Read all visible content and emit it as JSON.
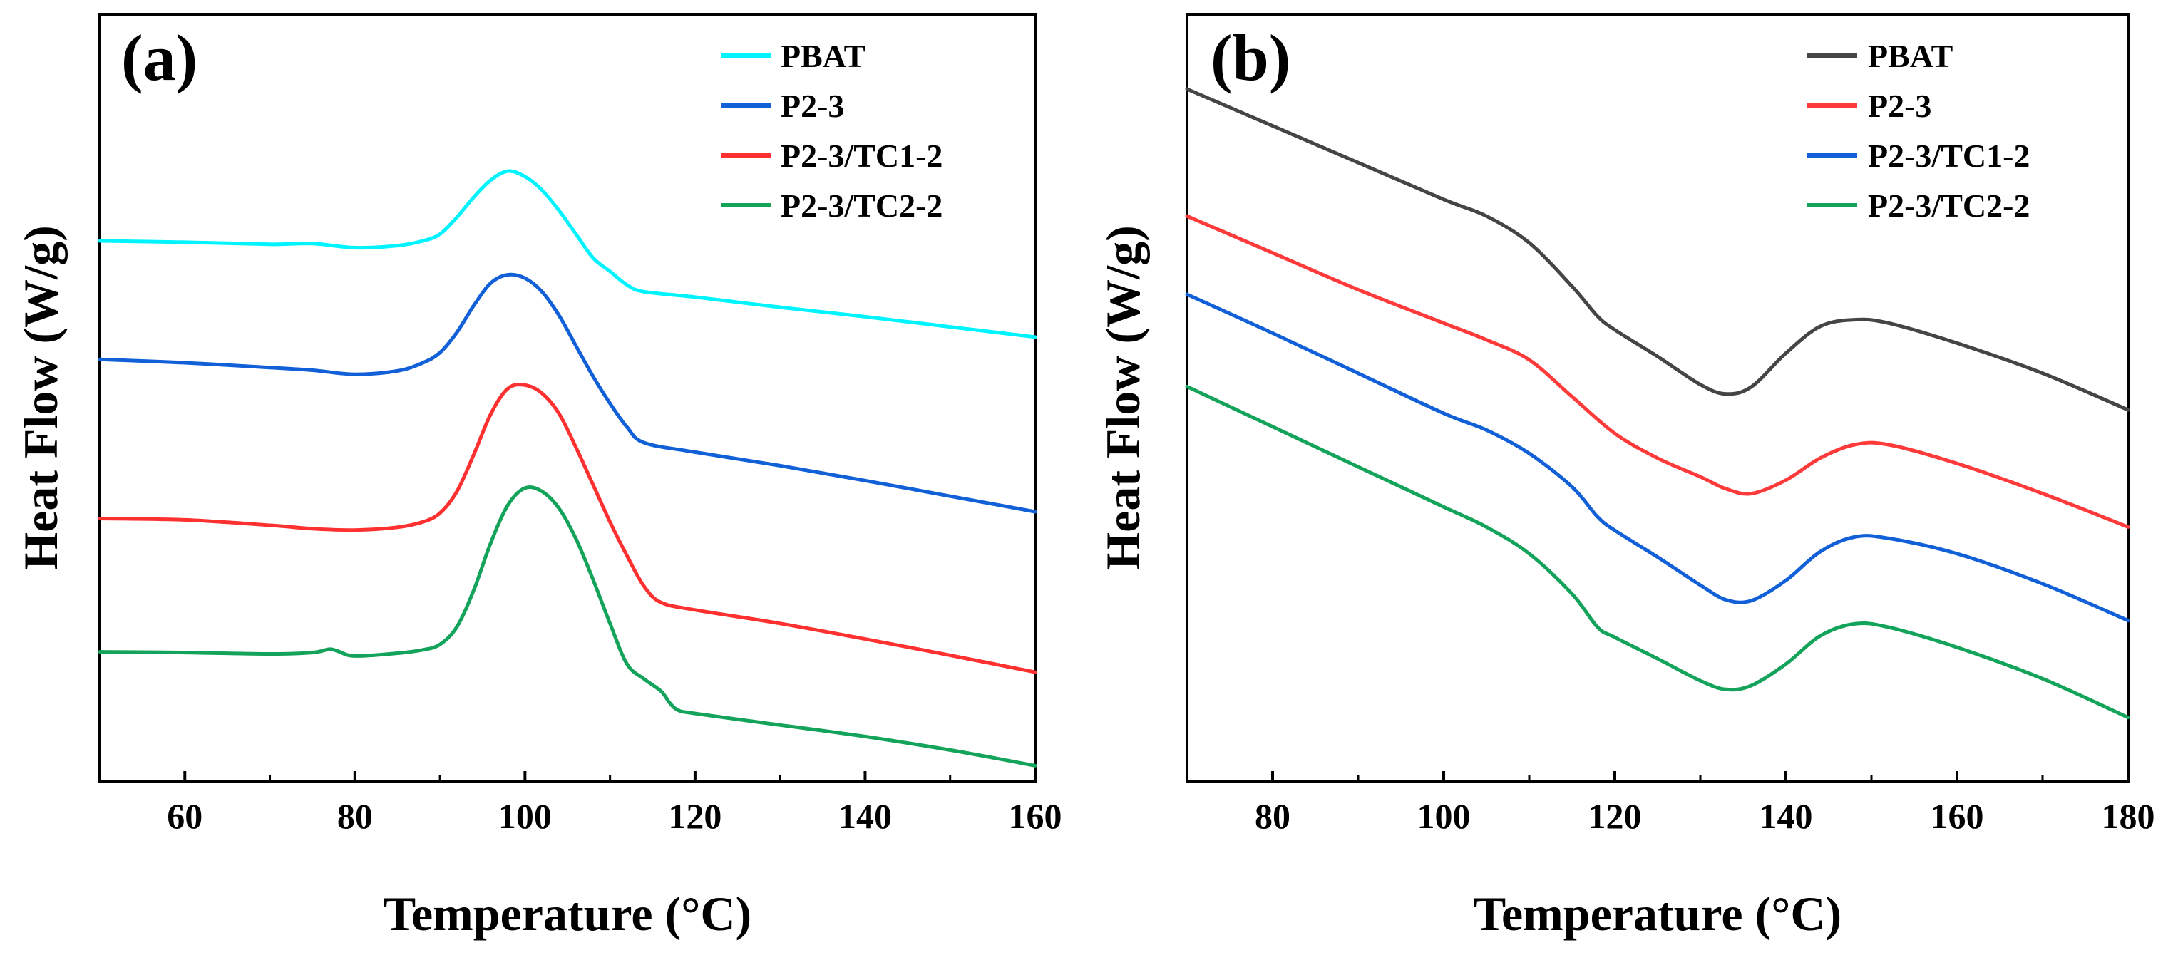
{
  "chart_data": [
    {
      "type": "line",
      "panel_label": "(a)",
      "xlabel": "Temperature (°C)",
      "ylabel": "Heat Flow (W/g)",
      "xlim": [
        50,
        160
      ],
      "ylim": [
        0,
        100
      ],
      "x_ticks": [
        60,
        80,
        100,
        120,
        140,
        160
      ],
      "y_ticks_shown": false,
      "grid": false,
      "legend_position": "top-right",
      "series": [
        {
          "name": "PBAT",
          "color": "#00f4ff",
          "points": [
            [
              50,
              76
            ],
            [
              60,
              75.8
            ],
            [
              70,
              75.5
            ],
            [
              75,
              75.6
            ],
            [
              80,
              75
            ],
            [
              85,
              75.3
            ],
            [
              88,
              76
            ],
            [
              90,
              77
            ],
            [
              92,
              79.5
            ],
            [
              94,
              82.5
            ],
            [
              96,
              85
            ],
            [
              98,
              86.3
            ],
            [
              100,
              85.5
            ],
            [
              102,
              83.5
            ],
            [
              104,
              80.5
            ],
            [
              106,
              77
            ],
            [
              108,
              73.5
            ],
            [
              110,
              71.5
            ],
            [
              112,
              69.5
            ],
            [
              114,
              68.5
            ],
            [
              120,
              67.7
            ],
            [
              130,
              66.2
            ],
            [
              140,
              64.8
            ],
            [
              150,
              63.3
            ],
            [
              160,
              61.8
            ]
          ]
        },
        {
          "name": "P2-3",
          "color": "#1160d8",
          "points": [
            [
              50,
              58.5
            ],
            [
              60,
              58
            ],
            [
              70,
              57.3
            ],
            [
              75,
              56.9
            ],
            [
              80,
              56.3
            ],
            [
              85,
              56.8
            ],
            [
              88,
              58
            ],
            [
              90,
              59.5
            ],
            [
              92,
              62.5
            ],
            [
              94,
              66.5
            ],
            [
              96,
              69.8
            ],
            [
              98,
              71
            ],
            [
              100,
              70.5
            ],
            [
              102,
              68.5
            ],
            [
              104,
              65
            ],
            [
              106,
              60.5
            ],
            [
              108,
              56
            ],
            [
              110,
              52
            ],
            [
              112,
              48.5
            ],
            [
              114,
              46.2
            ],
            [
              120,
              44.8
            ],
            [
              130,
              42.8
            ],
            [
              140,
              40.6
            ],
            [
              150,
              38.3
            ],
            [
              160,
              36
            ]
          ]
        },
        {
          "name": "P2-3/TC1-2",
          "color": "#ff3030",
          "points": [
            [
              50,
              35
            ],
            [
              60,
              34.8
            ],
            [
              70,
              34
            ],
            [
              75,
              33.5
            ],
            [
              80,
              33.3
            ],
            [
              85,
              33.7
            ],
            [
              88,
              34.5
            ],
            [
              90,
              35.8
            ],
            [
              92,
              39
            ],
            [
              94,
              44.5
            ],
            [
              96,
              50.5
            ],
            [
              98,
              54.2
            ],
            [
              100,
              54.7
            ],
            [
              102,
              53.5
            ],
            [
              104,
              50.5
            ],
            [
              106,
              45.5
            ],
            [
              108,
              40
            ],
            [
              110,
              34.5
            ],
            [
              112,
              29.5
            ],
            [
              114,
              25
            ],
            [
              116,
              22.6
            ],
            [
              120,
              21.5
            ],
            [
              130,
              19.5
            ],
            [
              140,
              17.2
            ],
            [
              150,
              14.8
            ],
            [
              160,
              12.3
            ]
          ]
        },
        {
          "name": "P2-3/TC2-2",
          "color": "#13a35a",
          "points": [
            [
              50,
              15.3
            ],
            [
              60,
              15.2
            ],
            [
              70,
              15
            ],
            [
              75,
              15.2
            ],
            [
              77,
              15.7
            ],
            [
              78,
              15.4
            ],
            [
              80,
              14.7
            ],
            [
              85,
              15.1
            ],
            [
              88,
              15.6
            ],
            [
              90,
              16.4
            ],
            [
              92,
              19
            ],
            [
              94,
              24.5
            ],
            [
              96,
              31.5
            ],
            [
              98,
              37
            ],
            [
              100,
              39.5
            ],
            [
              102,
              39
            ],
            [
              104,
              36.5
            ],
            [
              106,
              32
            ],
            [
              108,
              26
            ],
            [
              110,
              19.5
            ],
            [
              112,
              13.5
            ],
            [
              114,
              11.3
            ],
            [
              116,
              9.5
            ],
            [
              117,
              7.8
            ],
            [
              118,
              6.7
            ],
            [
              120,
              6.2
            ],
            [
              130,
              4.5
            ],
            [
              140,
              2.8
            ],
            [
              150,
              0.8
            ],
            [
              160,
              -1.5
            ]
          ]
        }
      ]
    },
    {
      "type": "line",
      "panel_label": "(b)",
      "xlabel": "Temperature (°C)",
      "ylabel": "Heat Flow (W/g)",
      "xlim": [
        70,
        180
      ],
      "ylim": [
        0,
        100
      ],
      "x_ticks": [
        80,
        100,
        120,
        140,
        160,
        180
      ],
      "y_ticks_shown": false,
      "grid": false,
      "legend_position": "top-right",
      "series": [
        {
          "name": "PBAT",
          "color": "#454545",
          "points": [
            [
              70,
              100
            ],
            [
              80,
              94.5
            ],
            [
              90,
              89
            ],
            [
              100,
              83.5
            ],
            [
              105,
              81
            ],
            [
              110,
              77
            ],
            [
              115,
              70.5
            ],
            [
              118,
              66
            ],
            [
              120,
              64
            ],
            [
              125,
              60
            ],
            [
              130,
              55.8
            ],
            [
              133,
              54.4
            ],
            [
              136,
              55.5
            ],
            [
              140,
              60.5
            ],
            [
              144,
              64.5
            ],
            [
              148,
              65.5
            ],
            [
              152,
              65
            ],
            [
              160,
              62
            ],
            [
              170,
              57.5
            ],
            [
              180,
              52
            ]
          ]
        },
        {
          "name": "P2-3",
          "color": "#ff3a3a",
          "points": [
            [
              70,
              81
            ],
            [
              80,
              75.5
            ],
            [
              90,
              70
            ],
            [
              100,
              65
            ],
            [
              105,
              62.5
            ],
            [
              110,
              59.5
            ],
            [
              115,
              54
            ],
            [
              120,
              48.5
            ],
            [
              125,
              44.8
            ],
            [
              130,
              42
            ],
            [
              133,
              40.2
            ],
            [
              136,
              39.5
            ],
            [
              140,
              41.5
            ],
            [
              144,
              44.8
            ],
            [
              148,
              46.8
            ],
            [
              152,
              46.8
            ],
            [
              160,
              44
            ],
            [
              170,
              39.5
            ],
            [
              180,
              34.5
            ]
          ]
        },
        {
          "name": "P2-3/TC1-2",
          "color": "#1160d8",
          "points": [
            [
              70,
              69.3
            ],
            [
              80,
              63.5
            ],
            [
              90,
              57.5
            ],
            [
              100,
              51.5
            ],
            [
              105,
              49
            ],
            [
              110,
              45.5
            ],
            [
              115,
              40.5
            ],
            [
              118,
              36
            ],
            [
              120,
              34
            ],
            [
              125,
              30
            ],
            [
              130,
              25.8
            ],
            [
              133,
              23.6
            ],
            [
              136,
              23.5
            ],
            [
              140,
              26.5
            ],
            [
              144,
              30.8
            ],
            [
              148,
              33
            ],
            [
              152,
              32.8
            ],
            [
              160,
              30.5
            ],
            [
              170,
              26
            ],
            [
              180,
              20.5
            ]
          ]
        },
        {
          "name": "P2-3/TC2-2",
          "color": "#13a35a",
          "points": [
            [
              70,
              55.5
            ],
            [
              80,
              49.5
            ],
            [
              90,
              43.5
            ],
            [
              100,
              37.5
            ],
            [
              105,
              34.5
            ],
            [
              110,
              30.5
            ],
            [
              115,
              24.5
            ],
            [
              118,
              19.5
            ],
            [
              120,
              18
            ],
            [
              125,
              14.8
            ],
            [
              130,
              11.5
            ],
            [
              133,
              10.2
            ],
            [
              136,
              10.8
            ],
            [
              140,
              14
            ],
            [
              144,
              18.2
            ],
            [
              148,
              20
            ],
            [
              152,
              19.5
            ],
            [
              160,
              16.5
            ],
            [
              170,
              11.8
            ],
            [
              180,
              6
            ]
          ]
        }
      ]
    }
  ]
}
